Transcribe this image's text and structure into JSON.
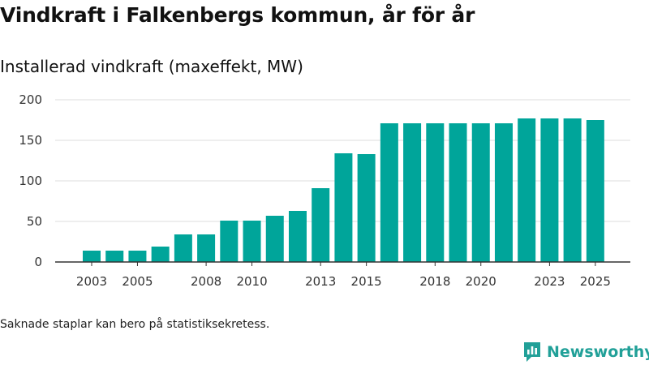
{
  "title": "Vindkraft i Falkenbergs kommun, år för år",
  "subtitle": "Installerad vindkraft (maxeffekt, MW)",
  "footnote": "Saknade staplar kan bero på statistiksekretess.",
  "brand": {
    "name": "Newsworthy",
    "icon": "newsworthy-logo-icon"
  },
  "colors": {
    "bar": "#00a59a",
    "grid": "#dddddd",
    "axis": "#333333",
    "brand": "#21a098"
  },
  "chart_data": {
    "type": "bar",
    "title": "Vindkraft i Falkenbergs kommun, år för år",
    "subtitle": "Installerad vindkraft (maxeffekt, MW)",
    "xlabel": "",
    "ylabel": "",
    "categories": [
      "2003",
      "2004",
      "2005",
      "2006",
      "2007",
      "2008",
      "2009",
      "2010",
      "2011",
      "2012",
      "2013",
      "2014",
      "2015",
      "2016",
      "2017",
      "2018",
      "2019",
      "2020",
      "2021",
      "2022",
      "2023",
      "2024",
      "2025"
    ],
    "values": [
      14,
      14,
      14,
      19,
      34,
      34,
      51,
      51,
      57,
      63,
      91,
      134,
      133,
      171,
      171,
      171,
      171,
      171,
      171,
      177,
      177,
      177,
      175
    ],
    "xtick_labels": [
      "2003",
      "2005",
      "2008",
      "2010",
      "2013",
      "2015",
      "2018",
      "2020",
      "2023",
      "2025"
    ],
    "yticks": [
      0,
      50,
      100,
      150,
      200
    ],
    "ylim": [
      0,
      200
    ],
    "grid": true
  }
}
